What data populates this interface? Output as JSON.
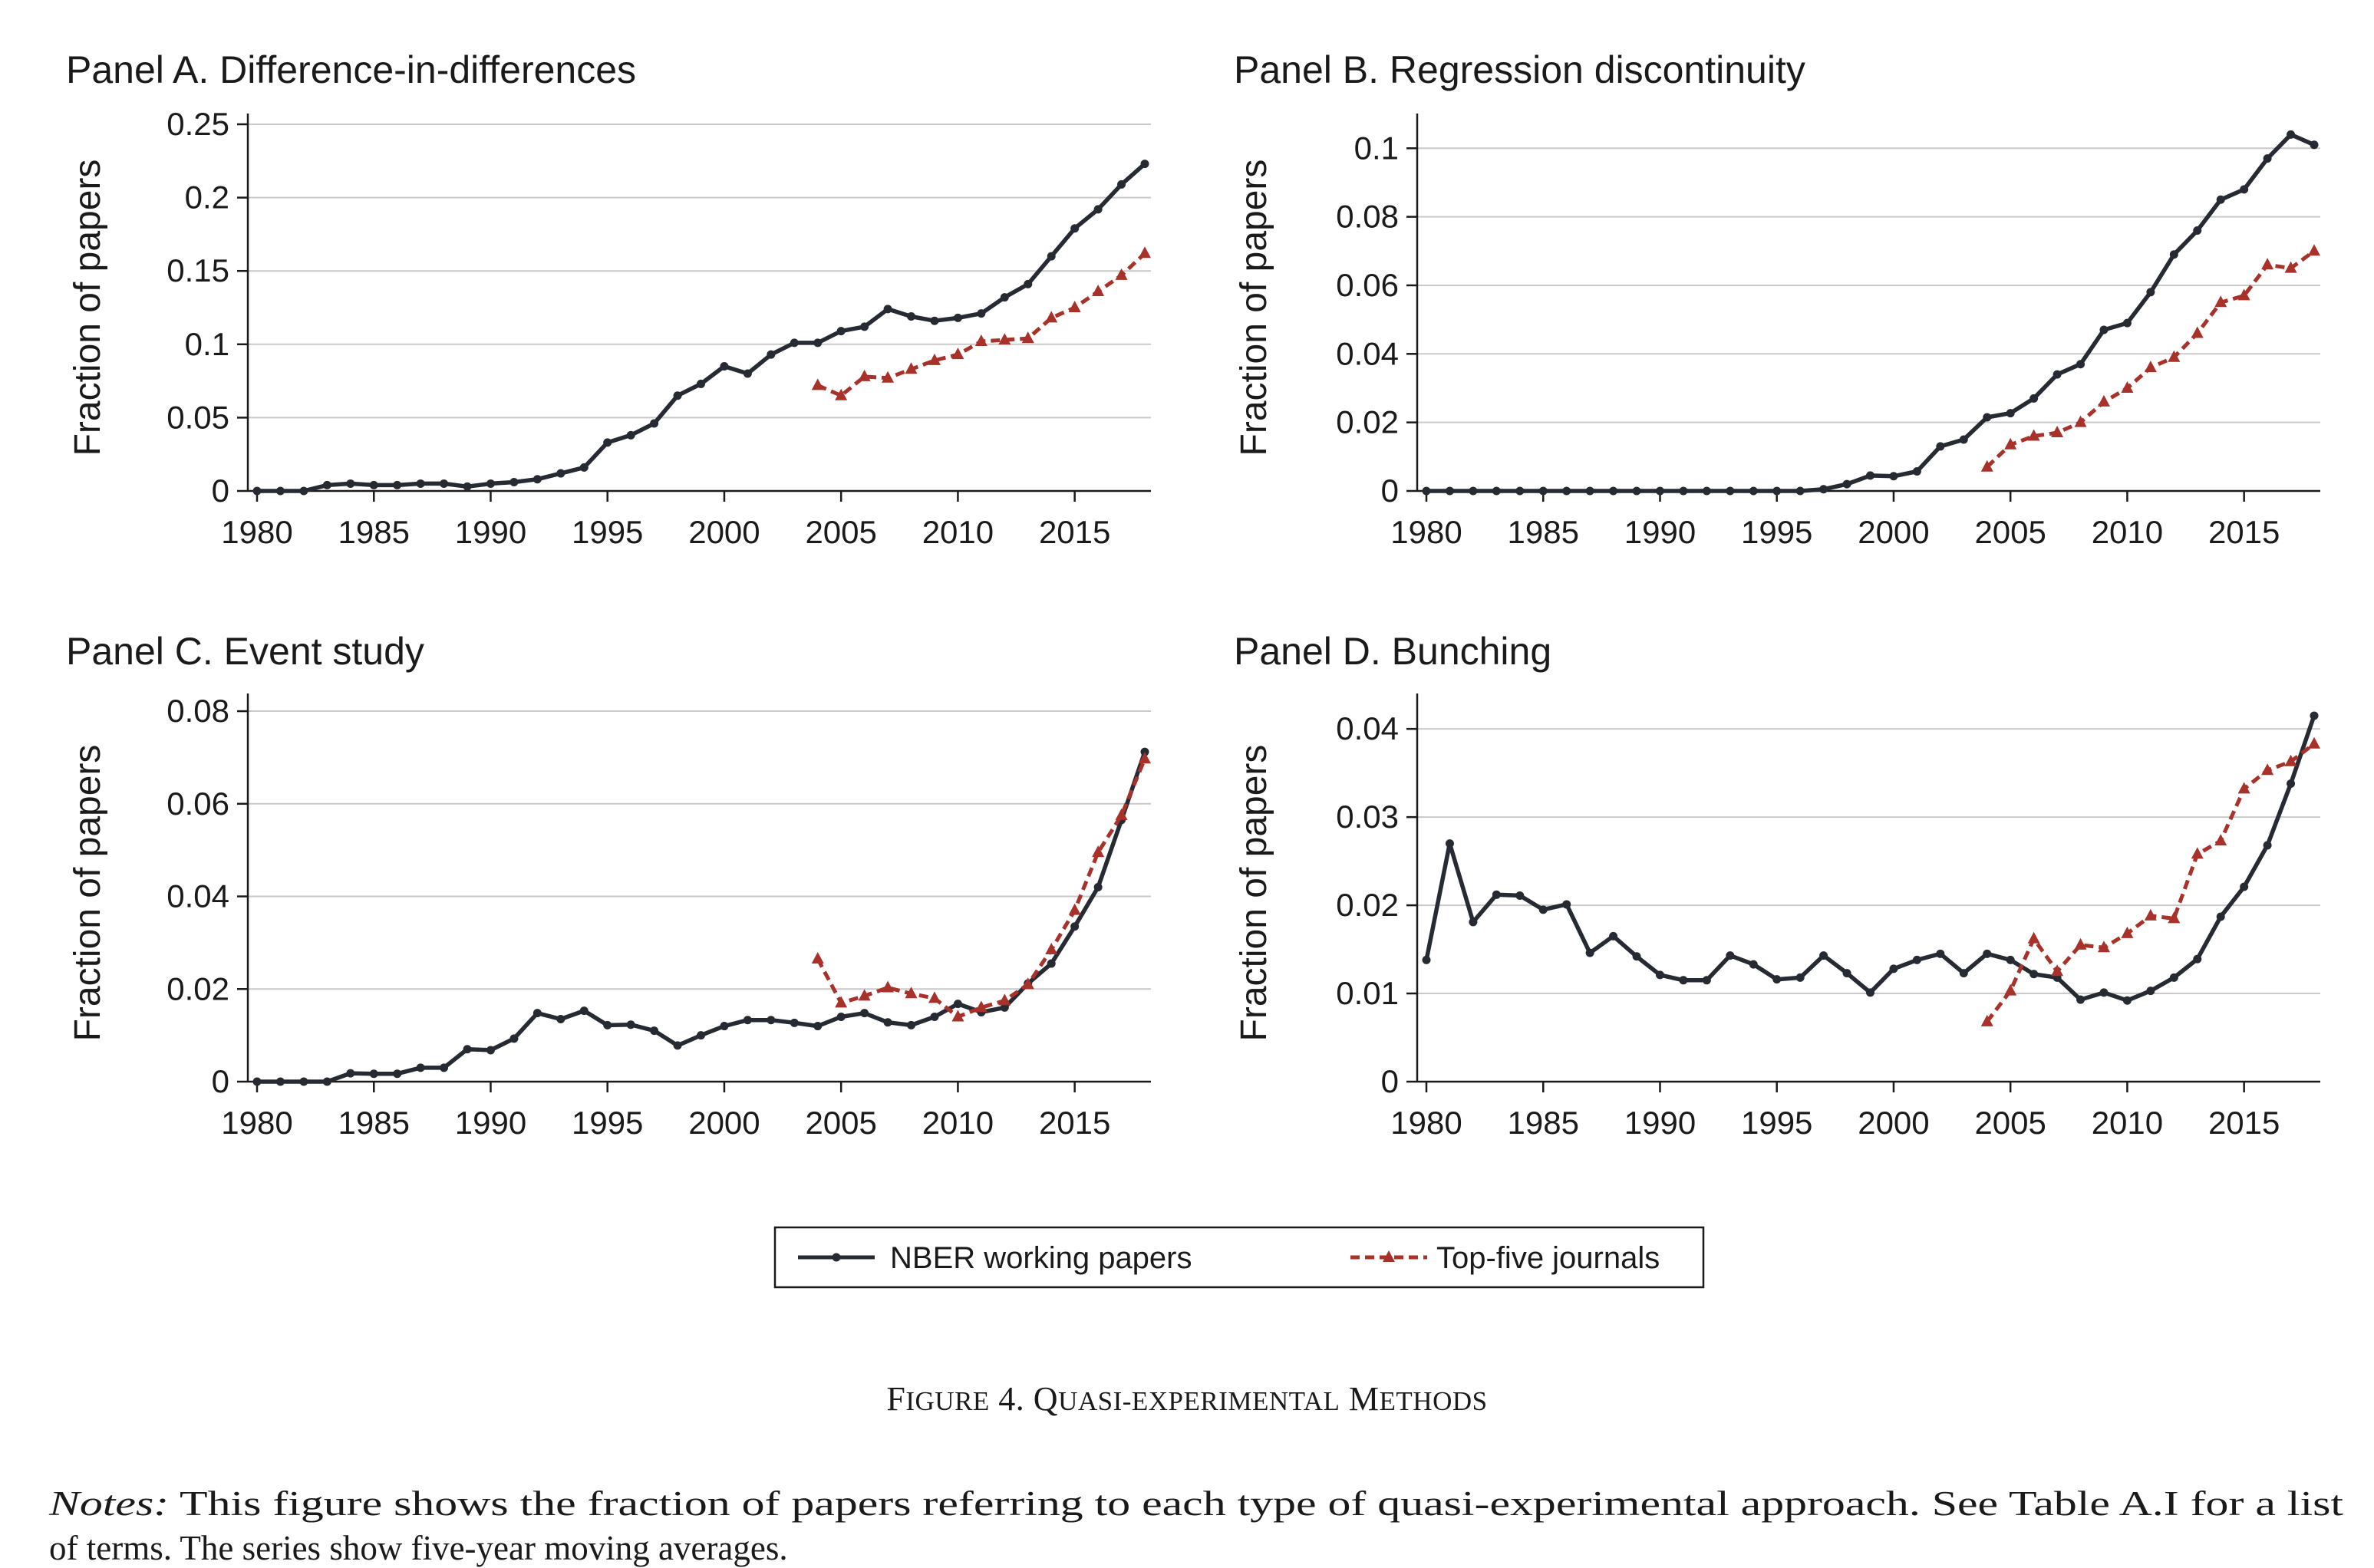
{
  "figure": {
    "caption_parts": [
      {
        "text": "F",
        "small": false
      },
      {
        "text": "IGURE",
        "small": true
      },
      {
        "text": " 4. Q",
        "small": false
      },
      {
        "text": "UASI-EXPERIMENTAL",
        "small": true
      },
      {
        "text": " M",
        "small": false
      },
      {
        "text": "ETHODS",
        "small": true
      }
    ],
    "notes_label": "Notes:",
    "notes_line1": " This figure shows the fraction of papers referring to each type of quasi-experimental approach. See Table A.I for a list",
    "notes_line2": "of terms. The series show five-year moving averages."
  },
  "legend": {
    "items": [
      {
        "label": "NBER working papers",
        "color": "#262a33",
        "style": "solid",
        "marker": "circle"
      },
      {
        "label": "Top-five journals",
        "color": "#a8322a",
        "style": "dashed",
        "marker": "triangle"
      }
    ]
  },
  "chart_data": [
    {
      "type": "line",
      "title": "Panel A. Difference-in-differences",
      "xlabel": "",
      "ylabel": "Fraction of papers",
      "xlim": [
        1980,
        2018
      ],
      "ylim": [
        0,
        0.25
      ],
      "xticks": [
        1980,
        1985,
        1990,
        1995,
        2000,
        2005,
        2010,
        2015
      ],
      "yticks": [
        0,
        0.05,
        0.1,
        0.15,
        0.2,
        0.25
      ],
      "ytick_labels": [
        "0",
        "0.05",
        "0.1",
        "0.15",
        "0.2",
        "0.25"
      ],
      "grid": "horizontal",
      "series": [
        {
          "name": "NBER working papers",
          "x_start": 1980,
          "values": [
            0,
            0,
            0,
            0.004,
            0.005,
            0.004,
            0.004,
            0.005,
            0.005,
            0.003,
            0.005,
            0.006,
            0.008,
            0.012,
            0.016,
            0.033,
            0.038,
            0.046,
            0.065,
            0.073,
            0.085,
            0.08,
            0.093,
            0.101,
            0.101,
            0.109,
            0.112,
            0.124,
            0.119,
            0.116,
            0.118,
            0.121,
            0.132,
            0.141,
            0.16,
            0.179,
            0.192,
            0.209,
            0.223
          ]
        },
        {
          "name": "Top-five journals",
          "x_start": 2004,
          "values": [
            0.072,
            0.065,
            0.078,
            0.077,
            0.083,
            0.089,
            0.093,
            0.102,
            0.103,
            0.104,
            0.118,
            0.125,
            0.136,
            0.147,
            0.162
          ]
        }
      ]
    },
    {
      "type": "line",
      "title": "Panel B. Regression discontinuity",
      "xlabel": "",
      "ylabel": "Fraction of papers",
      "xlim": [
        1980,
        2018
      ],
      "ylim": [
        0,
        0.107
      ],
      "xticks": [
        1980,
        1985,
        1990,
        1995,
        2000,
        2005,
        2010,
        2015
      ],
      "yticks": [
        0,
        0.02,
        0.04,
        0.06,
        0.08,
        0.1
      ],
      "ytick_labels": [
        "0",
        "0.02",
        "0.04",
        "0.06",
        "0.08",
        "0.1"
      ],
      "grid": "horizontal",
      "series": [
        {
          "name": "NBER working papers",
          "x_start": 1980,
          "values": [
            0,
            0,
            0,
            0,
            0,
            0,
            0,
            0,
            0,
            0,
            0,
            0,
            0,
            0,
            0,
            0,
            0,
            0.0005,
            0.002,
            0.0045,
            0.0043,
            0.0057,
            0.013,
            0.015,
            0.0215,
            0.0227,
            0.027,
            0.034,
            0.037,
            0.047,
            0.049,
            0.058,
            0.069,
            0.076,
            0.085,
            0.088,
            0.097,
            0.104,
            0.101
          ]
        },
        {
          "name": "Top-five journals",
          "x_start": 2004,
          "values": [
            0.007,
            0.0135,
            0.016,
            0.017,
            0.02,
            0.026,
            0.03,
            0.036,
            0.039,
            0.046,
            0.055,
            0.057,
            0.066,
            0.065,
            0.07
          ]
        }
      ]
    },
    {
      "type": "line",
      "title": "Panel C. Event study",
      "xlabel": "",
      "ylabel": "Fraction of papers",
      "xlim": [
        1980,
        2018
      ],
      "ylim": [
        0,
        0.0815
      ],
      "xticks": [
        1980,
        1985,
        1990,
        1995,
        2000,
        2005,
        2010,
        2015
      ],
      "yticks": [
        0,
        0.02,
        0.04,
        0.06,
        0.08
      ],
      "ytick_labels": [
        "0",
        "0.02",
        "0.04",
        "0.06",
        "0.08"
      ],
      "grid": "horizontal",
      "series": [
        {
          "name": "NBER working papers",
          "x_start": 1980,
          "values": [
            0,
            0,
            0,
            0,
            0.0018,
            0.0017,
            0.0017,
            0.003,
            0.003,
            0.007,
            0.0068,
            0.0093,
            0.0148,
            0.0135,
            0.0153,
            0.0122,
            0.0123,
            0.011,
            0.0078,
            0.01,
            0.012,
            0.0133,
            0.0133,
            0.0127,
            0.012,
            0.014,
            0.0148,
            0.0128,
            0.0122,
            0.014,
            0.0168,
            0.015,
            0.016,
            0.0212,
            0.0255,
            0.0335,
            0.042,
            0.0565,
            0.0712
          ]
        },
        {
          "name": "Top-five journals",
          "x_start": 2004,
          "values": [
            0.0265,
            0.017,
            0.0185,
            0.0203,
            0.019,
            0.018,
            0.014,
            0.016,
            0.0175,
            0.021,
            0.0285,
            0.037,
            0.0495,
            0.0575,
            0.0697
          ]
        }
      ]
    },
    {
      "type": "line",
      "title": "Panel D. Bunching",
      "xlabel": "",
      "ylabel": "Fraction of papers",
      "xlim": [
        1980,
        2018
      ],
      "ylim": [
        0,
        0.0428
      ],
      "xticks": [
        1980,
        1985,
        1990,
        1995,
        2000,
        2005,
        2010,
        2015
      ],
      "yticks": [
        0,
        0.01,
        0.02,
        0.03,
        0.04
      ],
      "ytick_labels": [
        "0",
        "0.01",
        "0.02",
        "0.03",
        "0.04"
      ],
      "grid": "horizontal",
      "series": [
        {
          "name": "NBER working papers",
          "x_start": 1980,
          "values": [
            0.0138,
            0.027,
            0.0181,
            0.0212,
            0.0211,
            0.0195,
            0.0201,
            0.0146,
            0.0165,
            0.0142,
            0.0121,
            0.0115,
            0.0115,
            0.0143,
            0.0133,
            0.0116,
            0.0118,
            0.0143,
            0.0123,
            0.0101,
            0.0128,
            0.0138,
            0.0145,
            0.0123,
            0.0145,
            0.0138,
            0.0122,
            0.0118,
            0.0093,
            0.0101,
            0.0092,
            0.0103,
            0.0118,
            0.0139,
            0.0187,
            0.0221,
            0.0268,
            0.0338,
            0.0415
          ]
        },
        {
          "name": "Top-five journals",
          "x_start": 2004,
          "values": [
            0.0068,
            0.0103,
            0.0162,
            0.0125,
            0.0155,
            0.0152,
            0.0168,
            0.0188,
            0.0185,
            0.0258,
            0.0273,
            0.0332,
            0.0353,
            0.0363,
            0.0383
          ]
        }
      ]
    }
  ]
}
